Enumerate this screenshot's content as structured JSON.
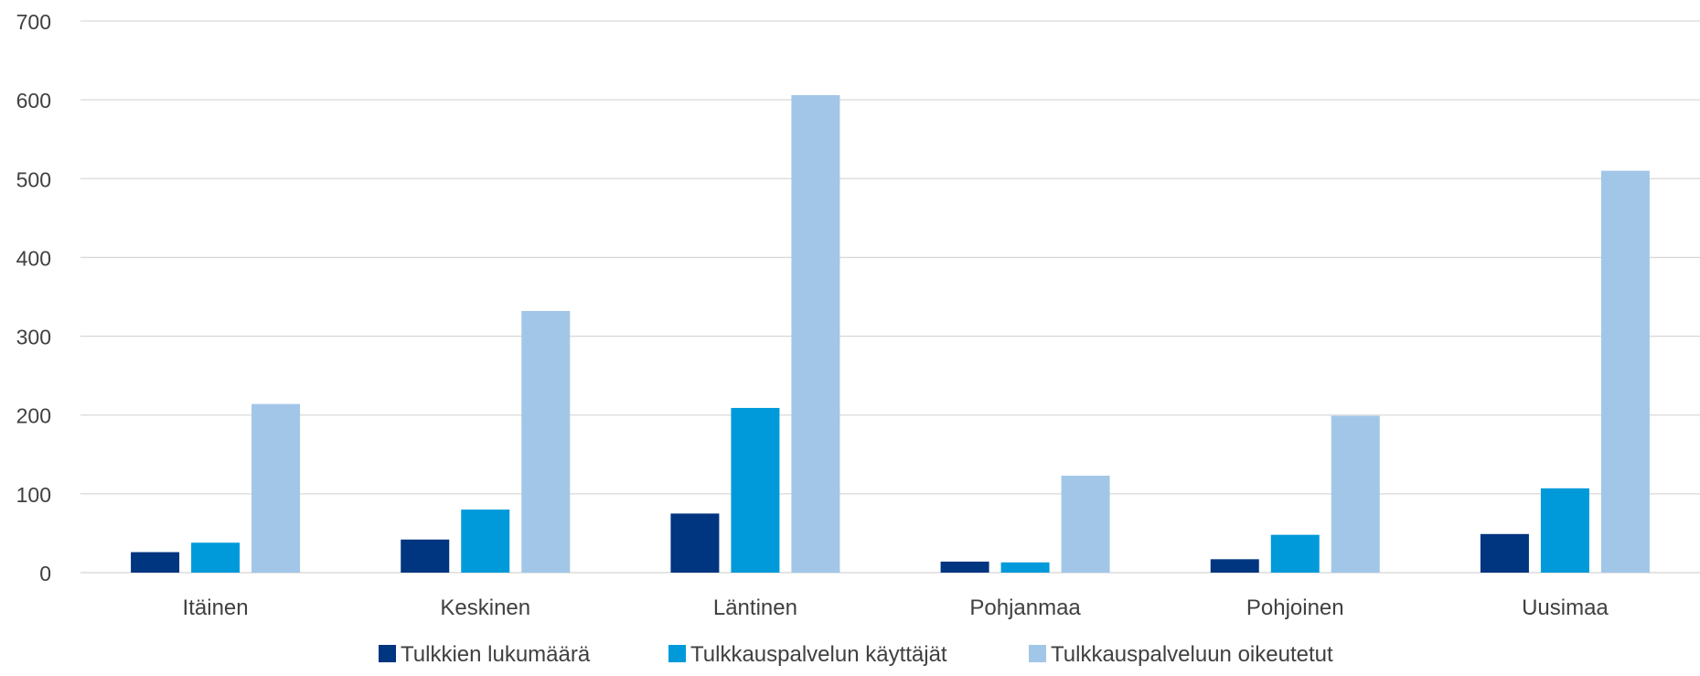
{
  "chart_data": {
    "type": "bar",
    "title": "",
    "xlabel": "",
    "ylabel": "",
    "categories": [
      "Itäinen",
      "Keskinen",
      "Läntinen",
      "Pohjanmaa",
      "Pohjoinen",
      "Uusimaa"
    ],
    "series": [
      {
        "name": "Tulkkien lukumäärä",
        "color": "#003580",
        "values": [
          26,
          42,
          75,
          14,
          17,
          49
        ]
      },
      {
        "name": "Tulkkauspalvelun käyttäjät",
        "color": "#009ADA",
        "values": [
          38,
          80,
          209,
          13,
          48,
          107
        ]
      },
      {
        "name": "Tulkkauspalveluun oikeutetut",
        "color": "#A2C6E8",
        "values": [
          214,
          332,
          606,
          123,
          199,
          510
        ]
      }
    ],
    "ylim": [
      0,
      700
    ],
    "yticks": [
      "0",
      "100",
      "200",
      "300",
      "400",
      "500",
      "600",
      "700"
    ],
    "grid": true,
    "legend_position": "bottom",
    "gridline_color": "#D9D9D9"
  }
}
